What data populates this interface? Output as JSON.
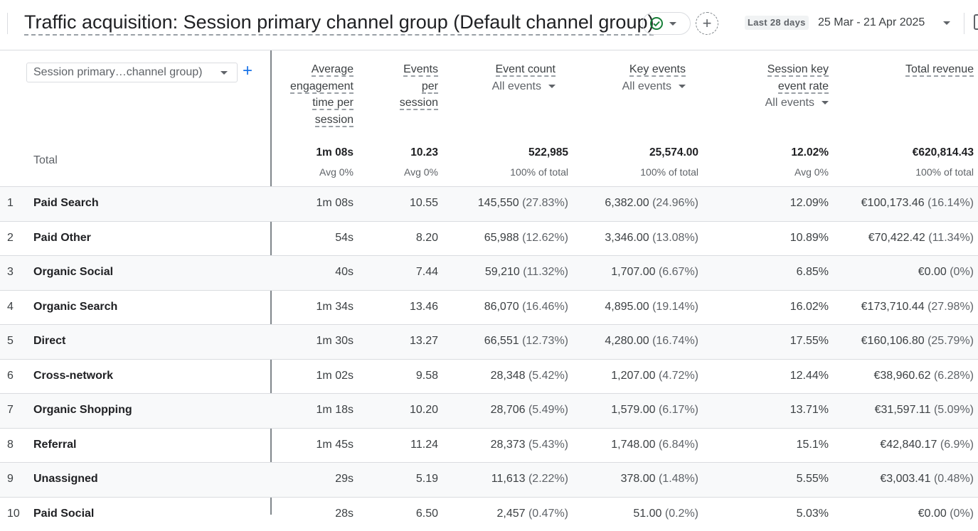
{
  "header": {
    "title": "Traffic acquisition: Session primary channel group (Default channel group)",
    "date_chip": "Last 28 days",
    "date_range": "25 Mar - 21 Apr 2025"
  },
  "dimension": {
    "select_label": "Session primary…channel group)",
    "add_symbol": "+"
  },
  "columns": [
    {
      "lines": [
        "Average",
        "engagement",
        "time per",
        "session"
      ],
      "sub": ""
    },
    {
      "lines": [
        "Events",
        "per",
        "session"
      ],
      "sub": ""
    },
    {
      "lines": [
        "Event count"
      ],
      "sub": "All events"
    },
    {
      "lines": [
        "Key events"
      ],
      "sub": "All events"
    },
    {
      "lines": [
        "Session key",
        "event rate"
      ],
      "sub": "All events"
    },
    {
      "lines": [
        "Total revenue"
      ],
      "sub": ""
    }
  ],
  "totals": {
    "label": "Total",
    "values": [
      "1m 08s",
      "10.23",
      "522,985",
      "25,574.00",
      "12.02%",
      "€620,814.43"
    ],
    "subs": [
      "Avg 0%",
      "Avg 0%",
      "100% of total",
      "100% of total",
      "Avg 0%",
      "100% of total"
    ]
  },
  "rows": [
    {
      "idx": "1",
      "name": "Paid Search",
      "cells": [
        [
          "1m 08s",
          ""
        ],
        [
          "10.55",
          ""
        ],
        [
          "145,550",
          "(27.83%)"
        ],
        [
          "6,382.00",
          "(24.96%)"
        ],
        [
          "12.09%",
          ""
        ],
        [
          "€100,173.46",
          "(16.14%)"
        ]
      ]
    },
    {
      "idx": "2",
      "name": "Paid Other",
      "cells": [
        [
          "54s",
          ""
        ],
        [
          "8.20",
          ""
        ],
        [
          "65,988",
          "(12.62%)"
        ],
        [
          "3,346.00",
          "(13.08%)"
        ],
        [
          "10.89%",
          ""
        ],
        [
          "€70,422.42",
          "(11.34%)"
        ]
      ]
    },
    {
      "idx": "3",
      "name": "Organic Social",
      "cells": [
        [
          "40s",
          ""
        ],
        [
          "7.44",
          ""
        ],
        [
          "59,210",
          "(11.32%)"
        ],
        [
          "1,707.00",
          "(6.67%)"
        ],
        [
          "6.85%",
          ""
        ],
        [
          "€0.00",
          "(0%)"
        ]
      ]
    },
    {
      "idx": "4",
      "name": "Organic Search",
      "cells": [
        [
          "1m 34s",
          ""
        ],
        [
          "13.46",
          ""
        ],
        [
          "86,070",
          "(16.46%)"
        ],
        [
          "4,895.00",
          "(19.14%)"
        ],
        [
          "16.02%",
          ""
        ],
        [
          "€173,710.44",
          "(27.98%)"
        ]
      ]
    },
    {
      "idx": "5",
      "name": "Direct",
      "cells": [
        [
          "1m 30s",
          ""
        ],
        [
          "13.27",
          ""
        ],
        [
          "66,551",
          "(12.73%)"
        ],
        [
          "4,280.00",
          "(16.74%)"
        ],
        [
          "17.55%",
          ""
        ],
        [
          "€160,106.80",
          "(25.79%)"
        ]
      ]
    },
    {
      "idx": "6",
      "name": "Cross-network",
      "cells": [
        [
          "1m 02s",
          ""
        ],
        [
          "9.58",
          ""
        ],
        [
          "28,348",
          "(5.42%)"
        ],
        [
          "1,207.00",
          "(4.72%)"
        ],
        [
          "12.44%",
          ""
        ],
        [
          "€38,960.62",
          "(6.28%)"
        ]
      ]
    },
    {
      "idx": "7",
      "name": "Organic Shopping",
      "cells": [
        [
          "1m 18s",
          ""
        ],
        [
          "10.20",
          ""
        ],
        [
          "28,706",
          "(5.49%)"
        ],
        [
          "1,579.00",
          "(6.17%)"
        ],
        [
          "13.71%",
          ""
        ],
        [
          "€31,597.11",
          "(5.09%)"
        ]
      ]
    },
    {
      "idx": "8",
      "name": "Referral",
      "cells": [
        [
          "1m 45s",
          ""
        ],
        [
          "11.24",
          ""
        ],
        [
          "28,373",
          "(5.43%)"
        ],
        [
          "1,748.00",
          "(6.84%)"
        ],
        [
          "15.1%",
          ""
        ],
        [
          "€42,840.17",
          "(6.9%)"
        ]
      ]
    },
    {
      "idx": "9",
      "name": "Unassigned",
      "cells": [
        [
          "29s",
          ""
        ],
        [
          "5.19",
          ""
        ],
        [
          "11,613",
          "(2.22%)"
        ],
        [
          "378.00",
          "(1.48%)"
        ],
        [
          "5.55%",
          ""
        ],
        [
          "€3,003.41",
          "(0.48%)"
        ]
      ]
    },
    {
      "idx": "10",
      "name": "Paid Social",
      "cells": [
        [
          "28s",
          ""
        ],
        [
          "6.50",
          ""
        ],
        [
          "2,457",
          "(0.47%)"
        ],
        [
          "51.00",
          "(0.2%)"
        ],
        [
          "5.03%",
          ""
        ],
        [
          "€0.00",
          "(0%)"
        ]
      ]
    }
  ],
  "colors": {
    "accent": "#1a73e8",
    "success": "#188038",
    "divider": "#dadce0"
  }
}
